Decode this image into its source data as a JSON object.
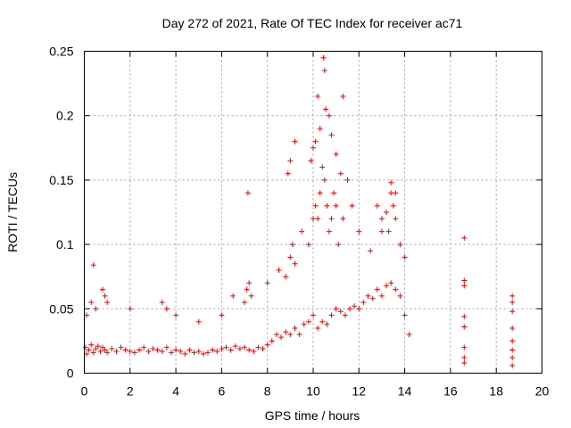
{
  "chart_data": {
    "type": "scatter",
    "title": "Day 272 of 2021, Rate Of TEC Index for receiver ac71",
    "xlabel": "GPS time / hours",
    "ylabel": "ROTI / TECUs",
    "xlim": [
      0,
      20
    ],
    "ylim": [
      0,
      0.25
    ],
    "grid": true,
    "marker": "+",
    "color": "#ff0000",
    "x_ticks": [
      {
        "value": 0,
        "label": "0"
      },
      {
        "value": 2,
        "label": "2"
      },
      {
        "value": 4,
        "label": "4"
      },
      {
        "value": 6,
        "label": "6"
      },
      {
        "value": 8,
        "label": "8"
      },
      {
        "value": 10,
        "label": "10"
      },
      {
        "value": 12,
        "label": "12"
      },
      {
        "value": 14,
        "label": "14"
      },
      {
        "value": 16,
        "label": "16"
      },
      {
        "value": 18,
        "label": "18"
      },
      {
        "value": 20,
        "label": "20"
      }
    ],
    "y_ticks": [
      {
        "value": 0,
        "label": "0"
      },
      {
        "value": 0.05,
        "label": "0.05"
      },
      {
        "value": 0.1,
        "label": "0.1"
      },
      {
        "value": 0.15,
        "label": "0.15"
      },
      {
        "value": 0.2,
        "label": "0.2"
      },
      {
        "value": 0.25,
        "label": "0.25"
      }
    ],
    "series": [
      {
        "name": "ROTI",
        "x": [
          0.05,
          0.1,
          0.2,
          0.3,
          0.4,
          0.5,
          0.6,
          0.7,
          0.8,
          0.9,
          1.0,
          1.2,
          1.4,
          1.6,
          1.8,
          2.0,
          2.2,
          2.4,
          2.6,
          2.8,
          3.0,
          3.2,
          3.4,
          3.6,
          3.8,
          4.0,
          4.2,
          4.4,
          4.6,
          4.8,
          5.0,
          5.2,
          5.4,
          5.6,
          5.8,
          6.0,
          6.2,
          6.4,
          6.6,
          6.8,
          7.0,
          7.2,
          7.4,
          7.6,
          7.8,
          8.0,
          8.2,
          8.4,
          8.6,
          8.8,
          9.0,
          9.2,
          9.4,
          9.6,
          9.8,
          10.0,
          10.2,
          10.4,
          10.6,
          10.8,
          11.0,
          11.2,
          11.4,
          11.6,
          11.8,
          12.0,
          12.2,
          12.4,
          12.6,
          12.8,
          13.0,
          13.2,
          13.4,
          13.6,
          13.8,
          14.0,
          14.2,
          0.1,
          0.3,
          0.5,
          0.8,
          0.9,
          1.0,
          2.0,
          3.4,
          3.6,
          4.0,
          5.0,
          6.0,
          6.5,
          7.0,
          7.1,
          7.2,
          7.3,
          8.0,
          8.5,
          8.8,
          9.0,
          9.1,
          9.2,
          9.5,
          9.8,
          10.0,
          10.1,
          10.2,
          10.3,
          10.4,
          10.5,
          10.6,
          10.7,
          10.8,
          10.9,
          11.0,
          11.1,
          11.3,
          11.5,
          11.7,
          12.0,
          12.5,
          13.0,
          13.2,
          13.4,
          13.5,
          13.6,
          13.8,
          14.0,
          0.4,
          7.15,
          10.2,
          10.45,
          10.5,
          10.55,
          11.3,
          9.2,
          9.0,
          8.9,
          10.0,
          10.3,
          10.1,
          9.9,
          10.7,
          10.8,
          11.0,
          11.2,
          13.4,
          13.6,
          12.8,
          13.0,
          13.3,
          16.6,
          16.6,
          16.6,
          16.6,
          16.6,
          16.6,
          16.6,
          16.6,
          18.7,
          18.7,
          18.7,
          18.7,
          18.7,
          18.7,
          18.7,
          18.7
        ],
        "y": [
          0.02,
          0.015,
          0.018,
          0.022,
          0.016,
          0.019,
          0.021,
          0.017,
          0.02,
          0.018,
          0.016,
          0.019,
          0.017,
          0.02,
          0.018,
          0.017,
          0.016,
          0.018,
          0.02,
          0.017,
          0.019,
          0.018,
          0.017,
          0.02,
          0.016,
          0.018,
          0.017,
          0.015,
          0.018,
          0.016,
          0.017,
          0.015,
          0.016,
          0.018,
          0.017,
          0.019,
          0.02,
          0.018,
          0.021,
          0.019,
          0.02,
          0.018,
          0.017,
          0.02,
          0.019,
          0.022,
          0.025,
          0.03,
          0.028,
          0.032,
          0.03,
          0.035,
          0.03,
          0.038,
          0.04,
          0.045,
          0.035,
          0.04,
          0.038,
          0.045,
          0.05,
          0.048,
          0.045,
          0.05,
          0.052,
          0.05,
          0.055,
          0.06,
          0.058,
          0.065,
          0.06,
          0.068,
          0.07,
          0.065,
          0.06,
          0.045,
          0.03,
          0.045,
          0.055,
          0.05,
          0.065,
          0.06,
          0.055,
          0.05,
          0.055,
          0.05,
          0.045,
          0.04,
          0.045,
          0.06,
          0.055,
          0.065,
          0.07,
          0.06,
          0.07,
          0.08,
          0.075,
          0.09,
          0.1,
          0.085,
          0.11,
          0.1,
          0.12,
          0.13,
          0.12,
          0.14,
          0.16,
          0.15,
          0.13,
          0.11,
          0.12,
          0.14,
          0.13,
          0.1,
          0.12,
          0.15,
          0.13,
          0.11,
          0.095,
          0.11,
          0.125,
          0.14,
          0.13,
          0.12,
          0.1,
          0.09,
          0.084,
          0.14,
          0.215,
          0.245,
          0.235,
          0.205,
          0.215,
          0.18,
          0.165,
          0.155,
          0.175,
          0.19,
          0.18,
          0.165,
          0.2,
          0.185,
          0.17,
          0.155,
          0.148,
          0.14,
          0.13,
          0.12,
          0.11,
          0.105,
          0.072,
          0.068,
          0.044,
          0.036,
          0.02,
          0.012,
          0.008,
          0.06,
          0.055,
          0.048,
          0.035,
          0.025,
          0.018,
          0.012,
          0.006
        ]
      }
    ]
  }
}
